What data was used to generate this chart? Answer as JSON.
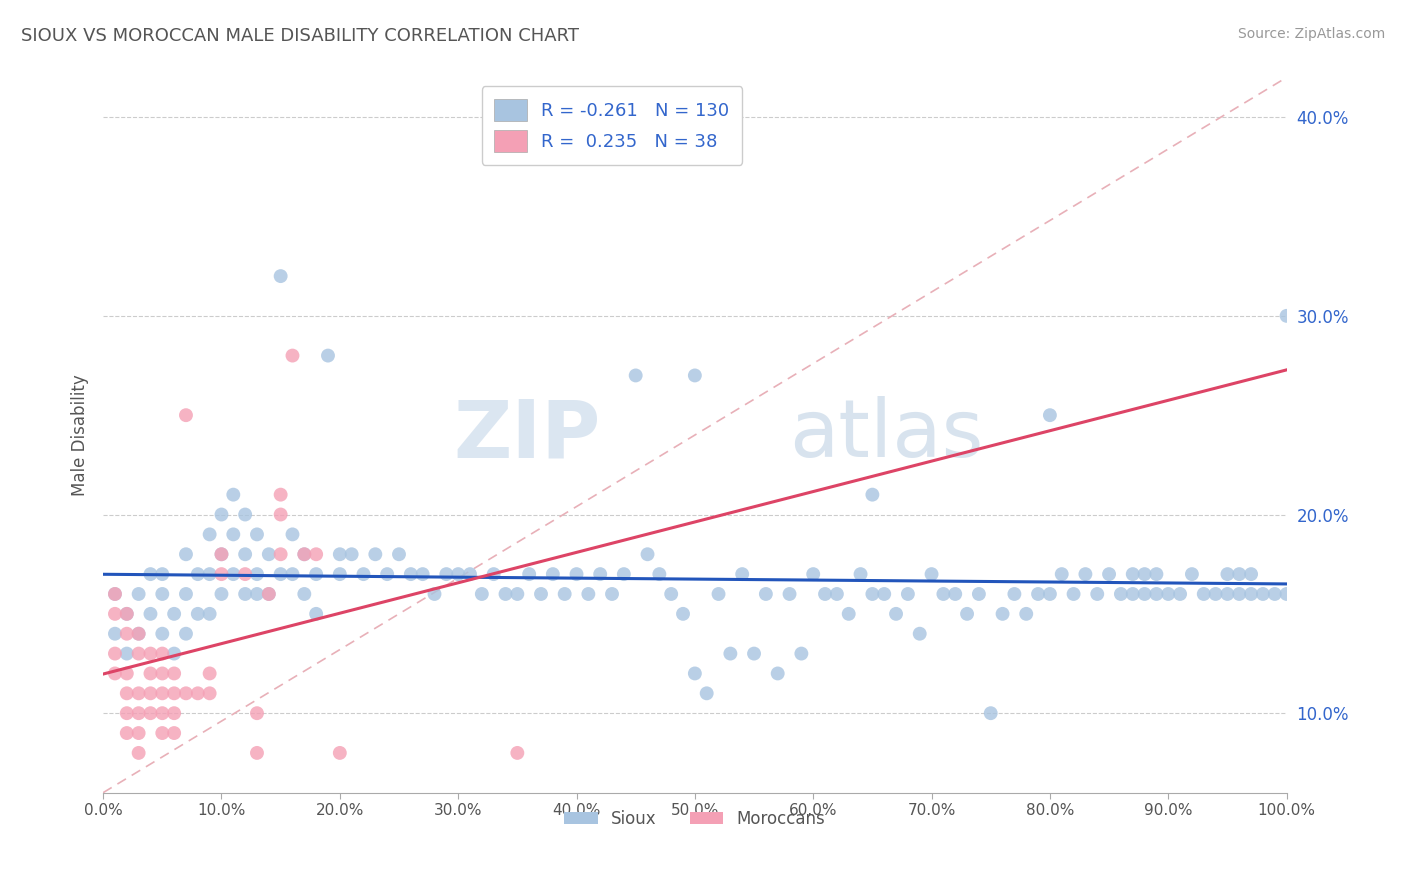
{
  "title": "SIOUX VS MOROCCAN MALE DISABILITY CORRELATION CHART",
  "source": "Source: ZipAtlas.com",
  "ylabel": "Male Disability",
  "legend_labels": [
    "Sioux",
    "Moroccans"
  ],
  "r_sioux": -0.261,
  "n_sioux": 130,
  "r_moroccan": 0.235,
  "n_moroccan": 38,
  "sioux_color": "#a8c4e0",
  "moroccan_color": "#f4a0b5",
  "sioux_line_color": "#2255bb",
  "moroccan_line_color": "#dd4466",
  "diag_line_color": "#e8b0b8",
  "label_color": "#3366cc",
  "sioux_scatter": [
    [
      1,
      16
    ],
    [
      1,
      14
    ],
    [
      2,
      15
    ],
    [
      2,
      13
    ],
    [
      3,
      16
    ],
    [
      3,
      14
    ],
    [
      4,
      17
    ],
    [
      4,
      15
    ],
    [
      5,
      16
    ],
    [
      5,
      14
    ],
    [
      5,
      17
    ],
    [
      6,
      15
    ],
    [
      6,
      13
    ],
    [
      7,
      18
    ],
    [
      7,
      16
    ],
    [
      7,
      14
    ],
    [
      8,
      17
    ],
    [
      8,
      15
    ],
    [
      9,
      19
    ],
    [
      9,
      17
    ],
    [
      9,
      15
    ],
    [
      10,
      20
    ],
    [
      10,
      18
    ],
    [
      10,
      16
    ],
    [
      11,
      21
    ],
    [
      11,
      19
    ],
    [
      11,
      17
    ],
    [
      12,
      20
    ],
    [
      12,
      18
    ],
    [
      12,
      16
    ],
    [
      13,
      19
    ],
    [
      13,
      17
    ],
    [
      13,
      16
    ],
    [
      14,
      18
    ],
    [
      14,
      16
    ],
    [
      15,
      32
    ],
    [
      15,
      17
    ],
    [
      16,
      19
    ],
    [
      16,
      17
    ],
    [
      17,
      18
    ],
    [
      17,
      16
    ],
    [
      18,
      17
    ],
    [
      18,
      15
    ],
    [
      19,
      28
    ],
    [
      20,
      18
    ],
    [
      20,
      17
    ],
    [
      21,
      18
    ],
    [
      22,
      17
    ],
    [
      23,
      18
    ],
    [
      24,
      17
    ],
    [
      25,
      18
    ],
    [
      26,
      17
    ],
    [
      27,
      17
    ],
    [
      28,
      16
    ],
    [
      29,
      17
    ],
    [
      30,
      17
    ],
    [
      31,
      17
    ],
    [
      32,
      16
    ],
    [
      33,
      17
    ],
    [
      34,
      16
    ],
    [
      35,
      16
    ],
    [
      36,
      17
    ],
    [
      37,
      16
    ],
    [
      38,
      17
    ],
    [
      39,
      16
    ],
    [
      40,
      17
    ],
    [
      41,
      16
    ],
    [
      42,
      17
    ],
    [
      43,
      16
    ],
    [
      44,
      17
    ],
    [
      45,
      27
    ],
    [
      46,
      18
    ],
    [
      47,
      17
    ],
    [
      48,
      16
    ],
    [
      49,
      15
    ],
    [
      50,
      27
    ],
    [
      50,
      12
    ],
    [
      51,
      11
    ],
    [
      52,
      16
    ],
    [
      53,
      13
    ],
    [
      54,
      17
    ],
    [
      55,
      13
    ],
    [
      56,
      16
    ],
    [
      57,
      12
    ],
    [
      58,
      16
    ],
    [
      59,
      13
    ],
    [
      60,
      17
    ],
    [
      61,
      16
    ],
    [
      62,
      16
    ],
    [
      63,
      15
    ],
    [
      64,
      17
    ],
    [
      65,
      21
    ],
    [
      65,
      16
    ],
    [
      66,
      16
    ],
    [
      67,
      15
    ],
    [
      68,
      16
    ],
    [
      69,
      14
    ],
    [
      70,
      17
    ],
    [
      71,
      16
    ],
    [
      72,
      16
    ],
    [
      73,
      15
    ],
    [
      74,
      16
    ],
    [
      75,
      10
    ],
    [
      76,
      15
    ],
    [
      77,
      16
    ],
    [
      78,
      15
    ],
    [
      79,
      16
    ],
    [
      80,
      25
    ],
    [
      80,
      16
    ],
    [
      81,
      17
    ],
    [
      82,
      16
    ],
    [
      83,
      17
    ],
    [
      84,
      16
    ],
    [
      85,
      17
    ],
    [
      86,
      16
    ],
    [
      87,
      17
    ],
    [
      87,
      16
    ],
    [
      88,
      17
    ],
    [
      88,
      16
    ],
    [
      89,
      17
    ],
    [
      89,
      16
    ],
    [
      90,
      16
    ],
    [
      91,
      16
    ],
    [
      92,
      17
    ],
    [
      93,
      16
    ],
    [
      94,
      16
    ],
    [
      95,
      17
    ],
    [
      95,
      16
    ],
    [
      96,
      17
    ],
    [
      96,
      16
    ],
    [
      97,
      17
    ],
    [
      97,
      16
    ],
    [
      98,
      16
    ],
    [
      99,
      16
    ],
    [
      100,
      30
    ],
    [
      100,
      16
    ]
  ],
  "moroccan_scatter": [
    [
      1,
      16
    ],
    [
      1,
      15
    ],
    [
      1,
      13
    ],
    [
      1,
      12
    ],
    [
      2,
      15
    ],
    [
      2,
      14
    ],
    [
      2,
      12
    ],
    [
      2,
      11
    ],
    [
      2,
      10
    ],
    [
      2,
      9
    ],
    [
      3,
      14
    ],
    [
      3,
      13
    ],
    [
      3,
      11
    ],
    [
      3,
      10
    ],
    [
      3,
      9
    ],
    [
      3,
      8
    ],
    [
      4,
      13
    ],
    [
      4,
      12
    ],
    [
      4,
      11
    ],
    [
      4,
      10
    ],
    [
      5,
      13
    ],
    [
      5,
      12
    ],
    [
      5,
      11
    ],
    [
      5,
      10
    ],
    [
      5,
      9
    ],
    [
      6,
      12
    ],
    [
      6,
      11
    ],
    [
      6,
      10
    ],
    [
      6,
      9
    ],
    [
      7,
      25
    ],
    [
      7,
      11
    ],
    [
      8,
      11
    ],
    [
      9,
      12
    ],
    [
      9,
      11
    ],
    [
      10,
      18
    ],
    [
      10,
      17
    ],
    [
      12,
      17
    ],
    [
      13,
      8
    ],
    [
      13,
      10
    ],
    [
      14,
      16
    ],
    [
      15,
      21
    ],
    [
      15,
      20
    ],
    [
      15,
      18
    ],
    [
      16,
      28
    ],
    [
      17,
      18
    ],
    [
      18,
      18
    ],
    [
      20,
      8
    ],
    [
      35,
      8
    ]
  ],
  "xlim": [
    0,
    100
  ],
  "ylim": [
    6,
    42
  ],
  "ytick_vals": [
    10,
    20,
    30,
    40
  ],
  "xtick_vals": [
    0,
    10,
    20,
    30,
    40,
    50,
    60,
    70,
    80,
    90,
    100
  ],
  "background_color": "#ffffff",
  "grid_color": "#cccccc",
  "watermark_zip": "ZIP",
  "watermark_atlas": "atlas"
}
